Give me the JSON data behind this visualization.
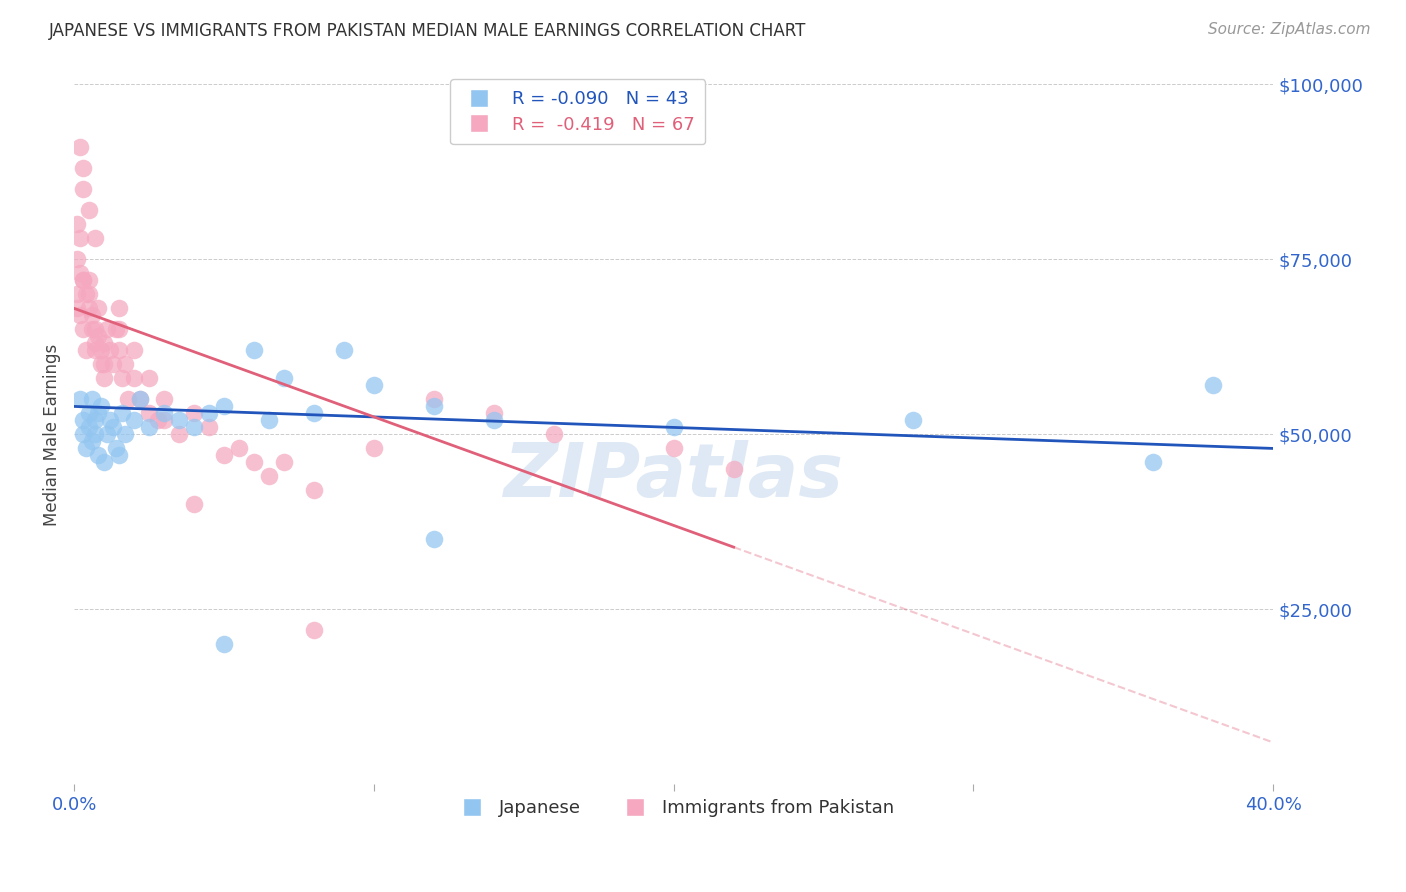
{
  "title": "JAPANESE VS IMMIGRANTS FROM PAKISTAN MEDIAN MALE EARNINGS CORRELATION CHART",
  "source": "Source: ZipAtlas.com",
  "ylabel": "Median Male Earnings",
  "yticks": [
    0,
    25000,
    50000,
    75000,
    100000
  ],
  "xlim": [
    0.0,
    0.4
  ],
  "ylim": [
    0,
    100000
  ],
  "watermark": "ZIPatlas",
  "legend_r1": "-0.090",
  "legend_n1": "43",
  "legend_r2": "-0.419",
  "legend_n2": "67",
  "color_japanese": "#92C5F0",
  "color_pakistan": "#F5A8C0",
  "color_line_japanese": "#2255BB",
  "color_line_pakistan": "#E0607A",
  "color_ytick": "#3366CC",
  "color_xtick": "#3366CC",
  "title_color": "#333333",
  "source_color": "#999999",
  "japanese_x": [
    0.002,
    0.003,
    0.003,
    0.004,
    0.005,
    0.005,
    0.006,
    0.006,
    0.007,
    0.007,
    0.008,
    0.008,
    0.009,
    0.01,
    0.011,
    0.012,
    0.013,
    0.014,
    0.015,
    0.016,
    0.017,
    0.02,
    0.022,
    0.025,
    0.03,
    0.035,
    0.04,
    0.045,
    0.05,
    0.06,
    0.065,
    0.07,
    0.08,
    0.09,
    0.1,
    0.12,
    0.14,
    0.2,
    0.28,
    0.36,
    0.38,
    0.05,
    0.12
  ],
  "japanese_y": [
    55000,
    52000,
    50000,
    48000,
    53000,
    51000,
    55000,
    49000,
    50000,
    52000,
    47000,
    53000,
    54000,
    46000,
    50000,
    52000,
    51000,
    48000,
    47000,
    53000,
    50000,
    52000,
    55000,
    51000,
    53000,
    52000,
    51000,
    53000,
    54000,
    62000,
    52000,
    58000,
    53000,
    62000,
    57000,
    54000,
    52000,
    51000,
    52000,
    46000,
    57000,
    20000,
    35000
  ],
  "pakistan_x": [
    0.001,
    0.001,
    0.002,
    0.002,
    0.003,
    0.003,
    0.004,
    0.004,
    0.005,
    0.005,
    0.006,
    0.006,
    0.007,
    0.007,
    0.008,
    0.008,
    0.009,
    0.009,
    0.01,
    0.01,
    0.011,
    0.012,
    0.013,
    0.014,
    0.015,
    0.016,
    0.017,
    0.018,
    0.02,
    0.022,
    0.025,
    0.028,
    0.03,
    0.035,
    0.04,
    0.045,
    0.05,
    0.055,
    0.06,
    0.065,
    0.07,
    0.08,
    0.1,
    0.12,
    0.14,
    0.16,
    0.2,
    0.22,
    0.003,
    0.005,
    0.007,
    0.015,
    0.02,
    0.025,
    0.03,
    0.001,
    0.001,
    0.002,
    0.003,
    0.005,
    0.007,
    0.01,
    0.002,
    0.003,
    0.015,
    0.04,
    0.08
  ],
  "pakistan_y": [
    70000,
    68000,
    73000,
    67000,
    72000,
    65000,
    70000,
    62000,
    68000,
    72000,
    65000,
    67000,
    63000,
    62000,
    68000,
    64000,
    62000,
    60000,
    63000,
    58000,
    65000,
    62000,
    60000,
    65000,
    62000,
    58000,
    60000,
    55000,
    58000,
    55000,
    53000,
    52000,
    55000,
    50000,
    53000,
    51000,
    47000,
    48000,
    46000,
    44000,
    46000,
    42000,
    48000,
    55000,
    53000,
    50000,
    48000,
    45000,
    88000,
    82000,
    78000,
    68000,
    62000,
    58000,
    52000,
    80000,
    75000,
    78000,
    72000,
    70000,
    65000,
    60000,
    91000,
    85000,
    65000,
    40000,
    22000
  ]
}
